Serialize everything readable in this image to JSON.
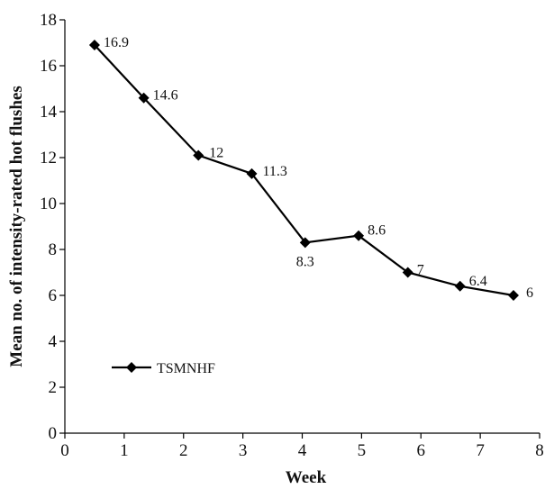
{
  "chart_data": {
    "type": "line",
    "xlabel": "Week",
    "ylabel": "Mean no. of intensity-rated hot flushes",
    "xlim": [
      0,
      8
    ],
    "ylim": [
      0,
      18
    ],
    "x_ticks": [
      "0",
      "1",
      "2",
      "3",
      "4",
      "5",
      "6",
      "7",
      "8"
    ],
    "y_ticks": [
      "0",
      "2",
      "4",
      "6",
      "8",
      "10",
      "12",
      "14",
      "16",
      "18"
    ],
    "grid": false,
    "legend": "lower-left",
    "series": [
      {
        "name": "TSMNHF",
        "marker": "diamond",
        "color": "#000000",
        "x": [
          0.5,
          1.33,
          2.25,
          3.15,
          4.05,
          4.95,
          5.78,
          6.66,
          7.56
        ],
        "y": [
          16.9,
          14.6,
          12.1,
          11.3,
          8.3,
          8.6,
          7.0,
          6.4,
          6.0
        ],
        "labels": [
          "16.9",
          "14.6",
          "12",
          "11.3",
          "8.3",
          "8.6",
          "7",
          "6.4",
          "6"
        ]
      }
    ]
  }
}
